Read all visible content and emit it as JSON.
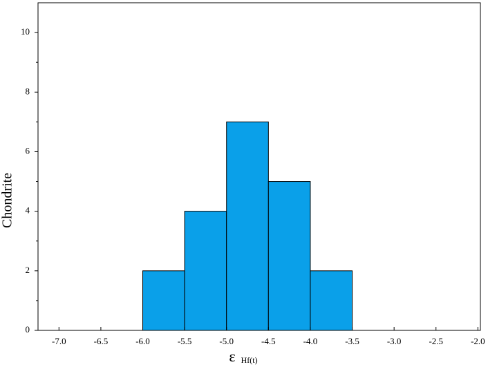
{
  "chart_data": {
    "type": "histogram",
    "xlabel": {
      "symbol": "ε",
      "subscript": "Hf(t)"
    },
    "ylabel": "Chondrite",
    "bins": [
      -6.0,
      -5.5,
      -5.0,
      -4.5,
      -4.0,
      -3.5
    ],
    "values": [
      2,
      4,
      7,
      5,
      2
    ],
    "color": "#0aa0e9",
    "edgecolor": "#000000",
    "xlim": [
      -7.25,
      -1.97
    ],
    "xticks": [
      {
        "value": -7,
        "label": "-7.0"
      },
      {
        "value": -6.5,
        "label": "-6.5"
      },
      {
        "value": -6,
        "label": "-6.0"
      },
      {
        "value": -5.5,
        "label": "-5.5"
      },
      {
        "value": -5,
        "label": "-5.0"
      },
      {
        "value": -4.5,
        "label": "-4.5"
      },
      {
        "value": -4,
        "label": "-4.0"
      },
      {
        "value": -3.5,
        "label": "-3.5"
      },
      {
        "value": -3,
        "label": "-3.0"
      },
      {
        "value": -2.5,
        "label": "-2.5"
      },
      {
        "value": -2,
        "label": "-2.0"
      }
    ],
    "ylim": [
      0,
      11
    ],
    "yticks": [
      0,
      2,
      4,
      6,
      8,
      10
    ],
    "yminorticks": [
      1,
      3,
      5,
      7,
      9
    ],
    "grid": false
  }
}
